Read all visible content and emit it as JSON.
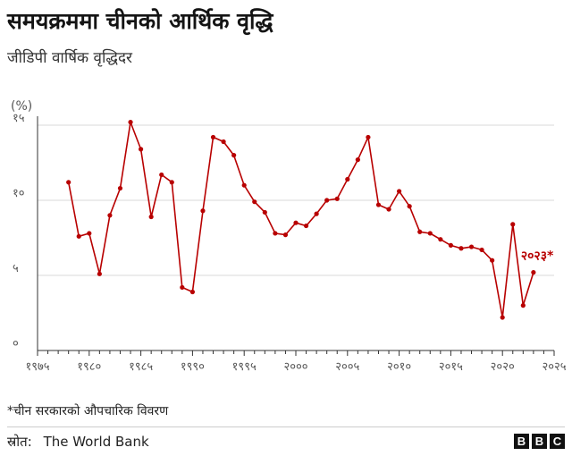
{
  "header": {
    "title": "समयक्रममा चीनको आर्थिक वृद्धि",
    "subtitle": "जीडिपी वार्षिक वृद्धिदर"
  },
  "footer": {
    "footnote": "*चीन सरकारको औपचारिक विवरण",
    "source_label": "स्रोत:",
    "source_name": "The World Bank",
    "logo_letters": [
      "B",
      "B",
      "C"
    ]
  },
  "colors": {
    "line": "#b80000",
    "grid": "#d9d9d9",
    "axis": "#333333"
  },
  "chart_data": {
    "type": "line",
    "title": "समयक्रममा चीनको आर्थिक वृद्धि",
    "subtitle": "जीडिपी वार्षिक वृद्धिदर",
    "ylabel": "(%)",
    "xlim": [
      1975,
      2025
    ],
    "ylim": [
      0,
      15
    ],
    "x_ticks": [
      1975,
      1976,
      1977,
      1978,
      1979,
      1980,
      1981,
      1982,
      1983,
      1984,
      1985,
      1986,
      1987,
      1988,
      1989,
      1990,
      1991,
      1992,
      1993,
      1994,
      1995,
      1996,
      1997,
      1998,
      1999,
      2000,
      2001,
      2002,
      2003,
      2004,
      2005,
      2006,
      2007,
      2008,
      2009,
      2010,
      2011,
      2012,
      2013,
      2014,
      2015,
      2016,
      2017,
      2018,
      2019,
      2020,
      2021,
      2022,
      2023,
      2024,
      2025
    ],
    "x_tick_labels": [
      {
        "x": 1975,
        "label": "१९७५"
      },
      {
        "x": 1980,
        "label": "१९८०"
      },
      {
        "x": 1985,
        "label": "१९८५"
      },
      {
        "x": 1990,
        "label": "१९९०"
      },
      {
        "x": 1995,
        "label": "१९९५"
      },
      {
        "x": 2000,
        "label": "२०००"
      },
      {
        "x": 2005,
        "label": "२००५"
      },
      {
        "x": 2010,
        "label": "२०१०"
      },
      {
        "x": 2015,
        "label": "२०१५"
      },
      {
        "x": 2020,
        "label": "२०२०"
      },
      {
        "x": 2025,
        "label": "२०२५"
      }
    ],
    "y_ticks": [
      {
        "y": 0,
        "label": "०"
      },
      {
        "y": 5,
        "label": "५"
      },
      {
        "y": 10,
        "label": "१०"
      },
      {
        "y": 15,
        "label": "१५"
      }
    ],
    "grid": true,
    "x": [
      1978,
      1979,
      1980,
      1981,
      1982,
      1983,
      1984,
      1985,
      1986,
      1987,
      1988,
      1989,
      1990,
      1991,
      1992,
      1993,
      1994,
      1995,
      1996,
      1997,
      1998,
      1999,
      2000,
      2001,
      2002,
      2003,
      2004,
      2005,
      2006,
      2007,
      2008,
      2009,
      2010,
      2011,
      2012,
      2013,
      2014,
      2015,
      2016,
      2017,
      2018,
      2019,
      2020,
      2021,
      2022,
      2023
    ],
    "values": [
      11.2,
      7.6,
      7.8,
      5.1,
      9.0,
      10.8,
      15.2,
      13.4,
      8.9,
      11.7,
      11.2,
      4.2,
      3.9,
      9.3,
      14.2,
      13.9,
      13.0,
      11.0,
      9.9,
      9.2,
      7.8,
      7.7,
      8.5,
      8.3,
      9.1,
      10.0,
      10.1,
      11.4,
      12.7,
      14.2,
      9.7,
      9.4,
      10.6,
      9.6,
      7.9,
      7.8,
      7.4,
      7.0,
      6.8,
      6.9,
      6.7,
      6.0,
      2.2,
      8.4,
      3.0,
      5.2
    ],
    "end_label": "२०२३*"
  }
}
